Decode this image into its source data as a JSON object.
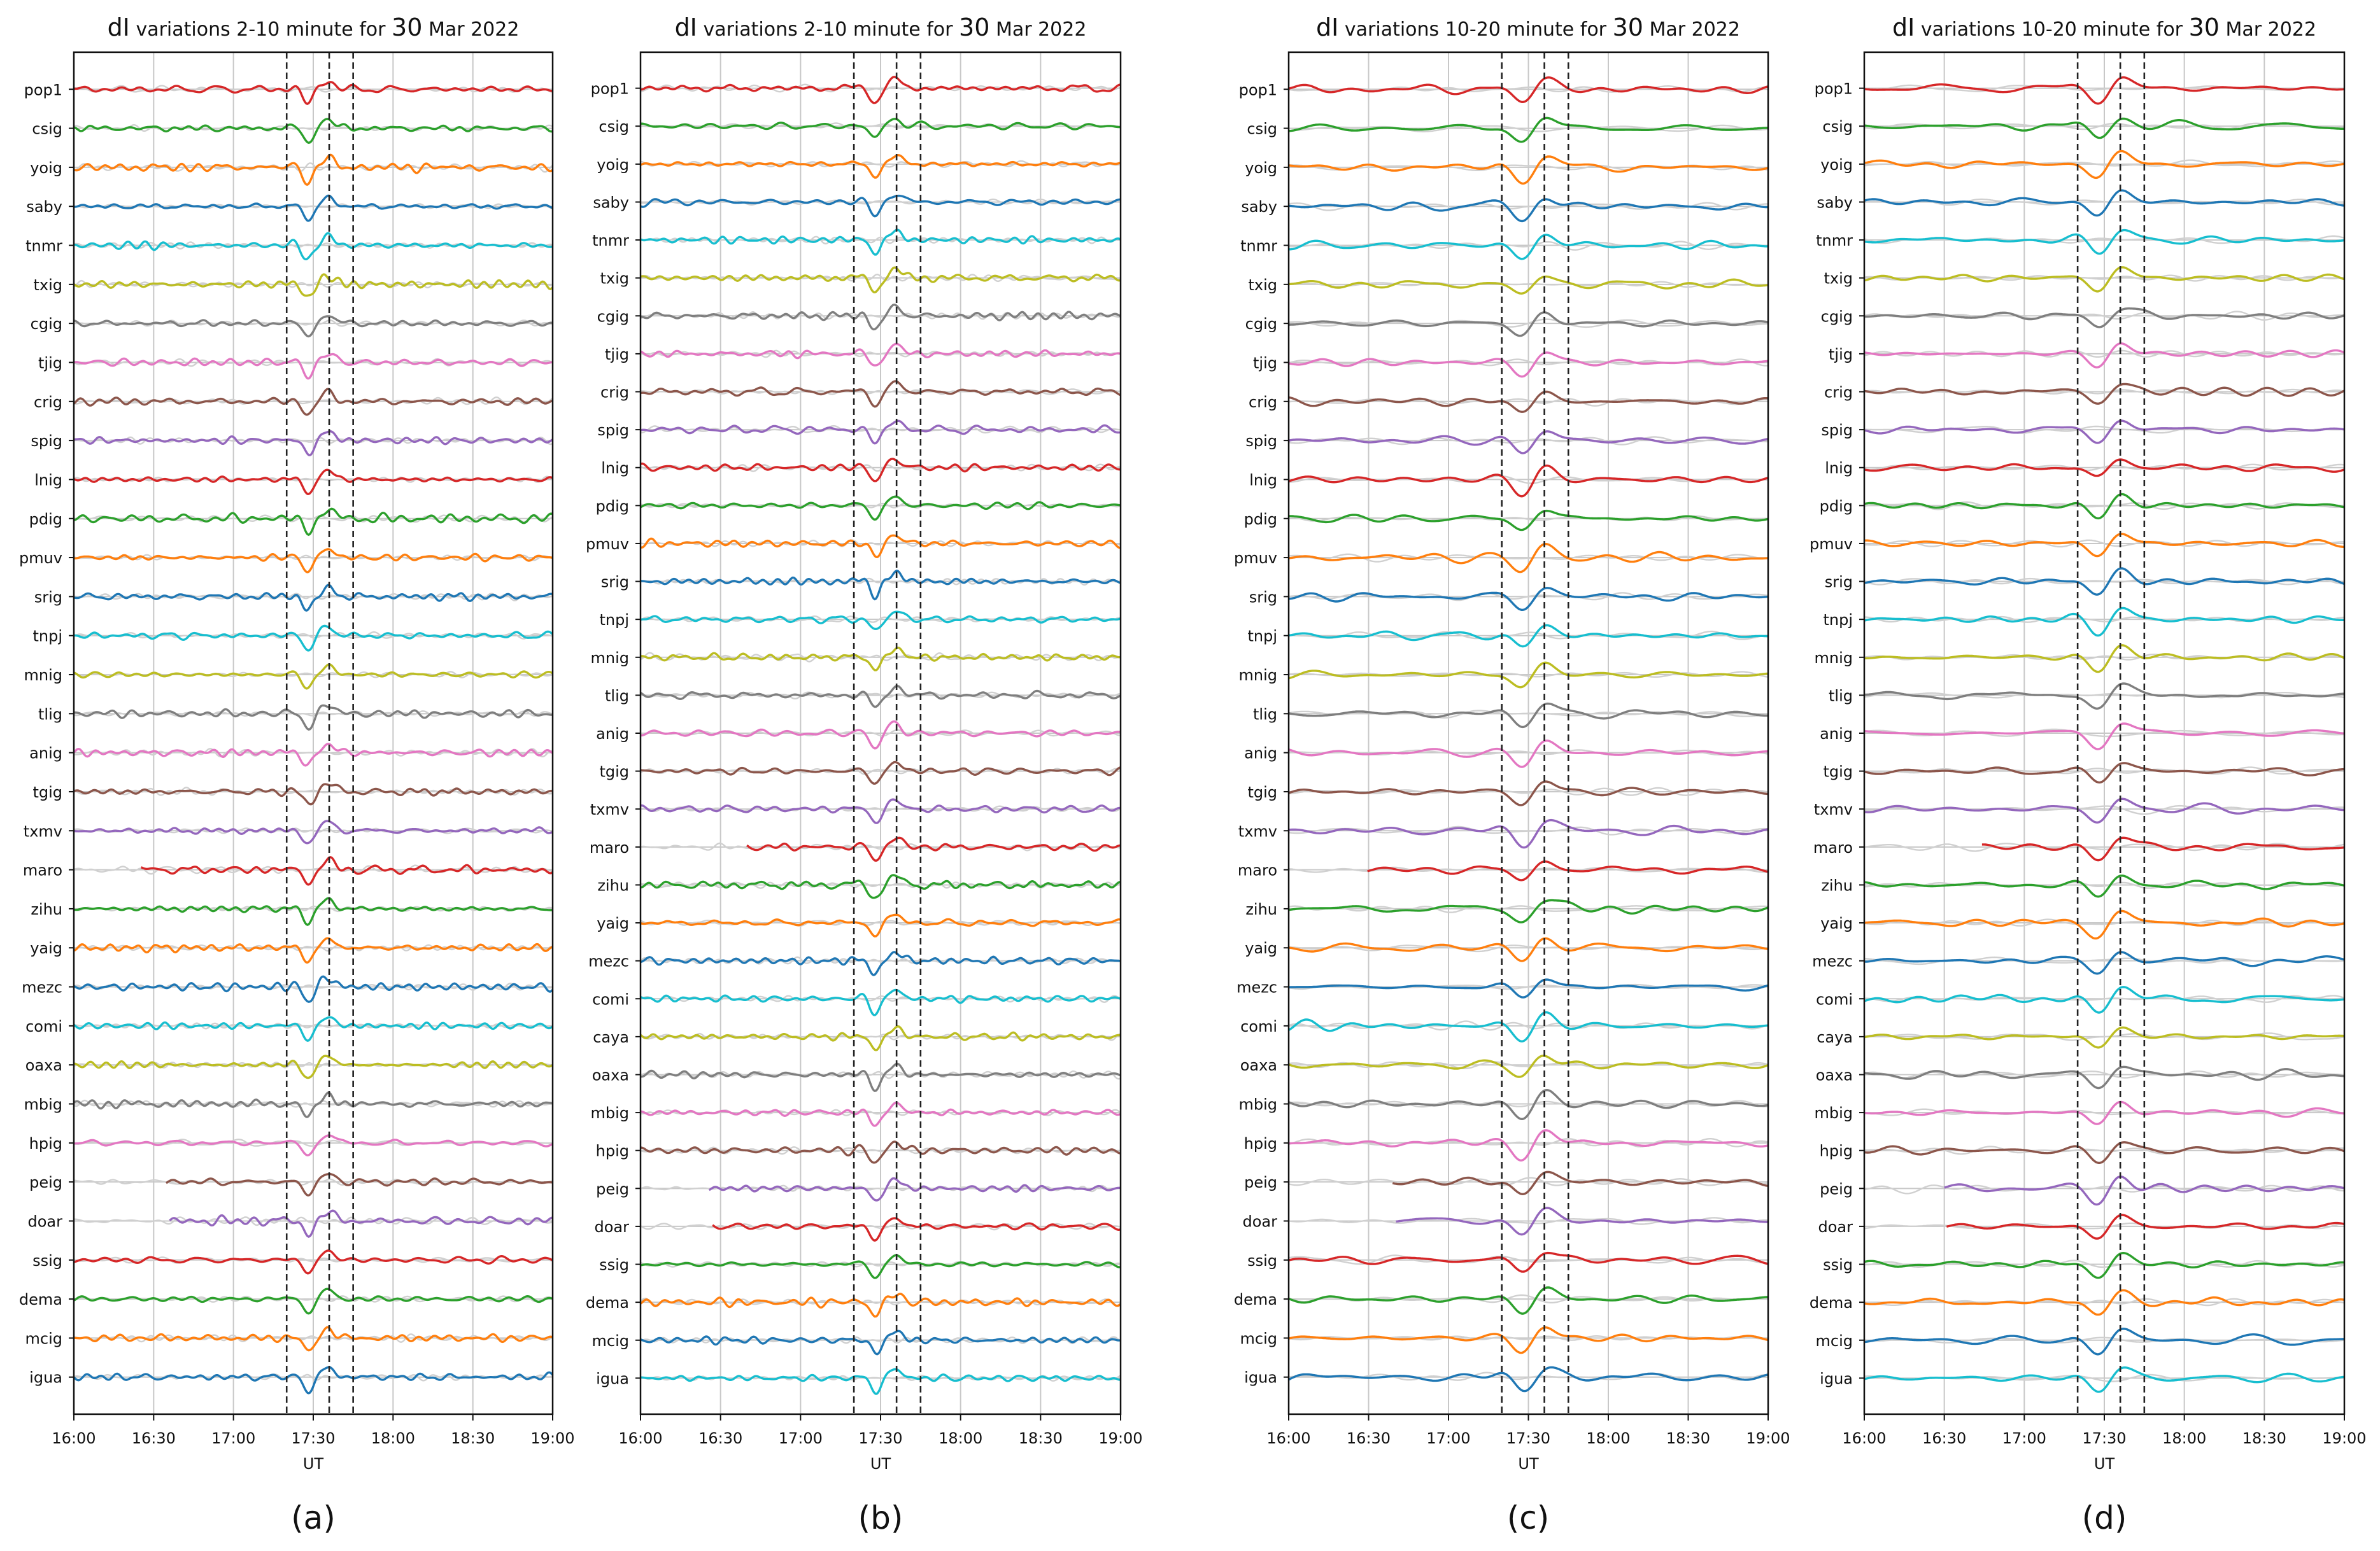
{
  "panel_letters": [
    "(a)",
    "(b)",
    "(c)",
    "(d)"
  ],
  "chart_data": [
    {
      "type": "line",
      "title_prefix": "dI",
      "title_text": "variations 2-10 minute for",
      "title_day": "30",
      "title_month": "Mar 2022",
      "xlabel": "UT",
      "xlim": [
        "16:00",
        "19:00"
      ],
      "x_ticks": [
        "16:00",
        "16:30",
        "17:00",
        "17:30",
        "18:00",
        "18:30",
        "19:00"
      ],
      "event_lines": [
        "17:20",
        "17:36",
        "17:45"
      ],
      "stations": [
        "pop1",
        "csig",
        "yoig",
        "saby",
        "tnmr",
        "txig",
        "cgig",
        "tjig",
        "crig",
        "spig",
        "lnig",
        "pdig",
        "pmuv",
        "srig",
        "tnpj",
        "mnig",
        "tlig",
        "anig",
        "tgig",
        "txmv",
        "maro",
        "zihu",
        "yaig",
        "mezc",
        "comi",
        "oaxa",
        "mbig",
        "hpig",
        "peig",
        "doar",
        "ssig",
        "dema",
        "mcig",
        "igua"
      ]
    },
    {
      "type": "line",
      "title_prefix": "dI",
      "title_text": "variations 2-10 minute for",
      "title_day": "30",
      "title_month": "Mar 2022",
      "xlabel": "UT",
      "xlim": [
        "16:00",
        "19:00"
      ],
      "x_ticks": [
        "16:00",
        "16:30",
        "17:00",
        "17:30",
        "18:00",
        "18:30",
        "19:00"
      ],
      "event_lines": [
        "17:20",
        "17:36",
        "17:45"
      ],
      "stations": [
        "pop1",
        "csig",
        "yoig",
        "saby",
        "tnmr",
        "txig",
        "cgig",
        "tjig",
        "crig",
        "spig",
        "lnig",
        "pdig",
        "pmuv",
        "srig",
        "tnpj",
        "mnig",
        "tlig",
        "anig",
        "tgig",
        "txmv",
        "maro",
        "zihu",
        "yaig",
        "mezc",
        "comi",
        "caya",
        "oaxa",
        "mbig",
        "hpig",
        "peig",
        "doar",
        "ssig",
        "dema",
        "mcig",
        "igua"
      ]
    },
    {
      "type": "line",
      "title_prefix": "dI",
      "title_text": "variations 10-20 minute for",
      "title_day": "30",
      "title_month": "Mar 2022",
      "xlabel": "UT",
      "xlim": [
        "16:00",
        "19:00"
      ],
      "x_ticks": [
        "16:00",
        "16:30",
        "17:00",
        "17:30",
        "18:00",
        "18:30",
        "19:00"
      ],
      "event_lines": [
        "17:20",
        "17:36",
        "17:45"
      ],
      "stations": [
        "pop1",
        "csig",
        "yoig",
        "saby",
        "tnmr",
        "txig",
        "cgig",
        "tjig",
        "crig",
        "spig",
        "lnig",
        "pdig",
        "pmuv",
        "srig",
        "tnpj",
        "mnig",
        "tlig",
        "anig",
        "tgig",
        "txmv",
        "maro",
        "zihu",
        "yaig",
        "mezc",
        "comi",
        "oaxa",
        "mbig",
        "hpig",
        "peig",
        "doar",
        "ssig",
        "dema",
        "mcig",
        "igua"
      ]
    },
    {
      "type": "line",
      "title_prefix": "dI",
      "title_text": "variations 10-20 minute for",
      "title_day": "30",
      "title_month": "Mar 2022",
      "xlabel": "UT",
      "xlim": [
        "16:00",
        "19:00"
      ],
      "x_ticks": [
        "16:00",
        "16:30",
        "17:00",
        "17:30",
        "18:00",
        "18:30",
        "19:00"
      ],
      "event_lines": [
        "17:20",
        "17:36",
        "17:45"
      ],
      "stations": [
        "pop1",
        "csig",
        "yoig",
        "saby",
        "tnmr",
        "txig",
        "cgig",
        "tjig",
        "crig",
        "spig",
        "lnig",
        "pdig",
        "pmuv",
        "srig",
        "tnpj",
        "mnig",
        "tlig",
        "anig",
        "tgig",
        "txmv",
        "maro",
        "zihu",
        "yaig",
        "mezc",
        "comi",
        "caya",
        "oaxa",
        "mbig",
        "hpig",
        "peig",
        "doar",
        "ssig",
        "dema",
        "mcig",
        "igua"
      ]
    }
  ],
  "series_colors": [
    "#d62728",
    "#2ca02c",
    "#ff7f0e",
    "#1f77b4",
    "#17becf",
    "#bcbd22",
    "#7f7f7f",
    "#e377c2",
    "#8c564b",
    "#9467bd"
  ],
  "grid_color": "#c8c8c8",
  "reference_trace_color": "#d0d0d0",
  "event_line_color": "#222222"
}
